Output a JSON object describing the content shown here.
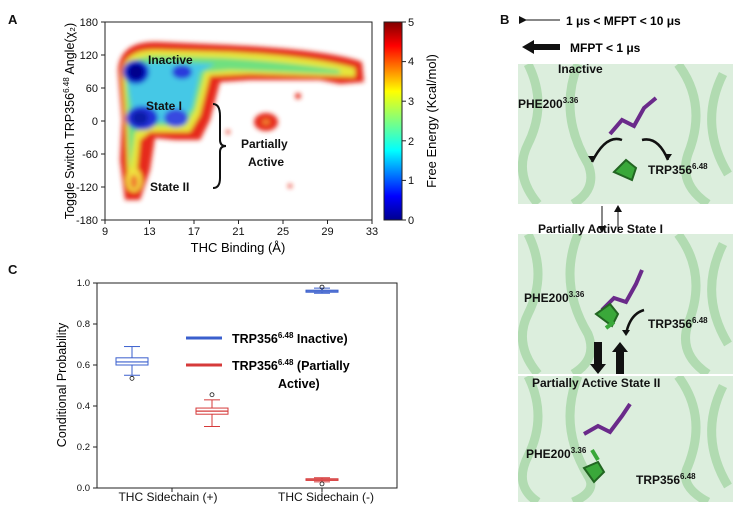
{
  "panel_a": {
    "letter": "A",
    "x_label": "THC Binding (Å)",
    "y_label_pre": "Toggle Switch TRP356",
    "y_label_sup": "6.48",
    "y_label_post": " Angle(χ₂)",
    "x_ticks": [
      "9",
      "13",
      "17",
      "21",
      "25",
      "29",
      "33"
    ],
    "y_ticks": [
      "180",
      "120",
      "60",
      "0",
      "-60",
      "-120",
      "-180"
    ],
    "colorbar_label": "Free Energy (Kcal/mol)",
    "colorbar_ticks": [
      "5",
      "4",
      "3",
      "2",
      "1",
      "0"
    ],
    "annotations": {
      "inactive": "Inactive",
      "state1": "State I",
      "partially_active_1": "Partially",
      "partially_active_2": "Active",
      "state2": "State II"
    }
  },
  "panel_b": {
    "letter": "B",
    "legend_thin": "1 μs < MFPT < 10 μs",
    "legend_thick": "MFPT < 1 μs",
    "states": {
      "inactive": "Inactive",
      "partial1": "Partially Active State I",
      "partial2": "Partially Active State II"
    },
    "phe_base": "PHE200",
    "phe_sup": "3.36",
    "trp_base": "TRP356",
    "trp_sup": "6.48"
  },
  "panel_c": {
    "letter": "C",
    "y_label": "Conditional Probability",
    "y_ticks": [
      "1.0",
      "0.8",
      "0.6",
      "0.4",
      "0.2",
      "0.0"
    ],
    "x_labels": [
      "THC Sidechain (+)",
      "THC Sidechain (-)"
    ],
    "legend": [
      {
        "base": "TRP356",
        "sup": "6.48",
        "rest": " Inactive)",
        "color": "#3a5fcd"
      },
      {
        "base": "TRP356",
        "sup": "6.48",
        "rest": " (Partially",
        "rest2": "Active)",
        "color": "#d63a3a"
      }
    ]
  },
  "chart_data": [
    {
      "type": "heatmap",
      "xlabel": "THC Binding (Å)",
      "ylabel": "Toggle Switch TRP356 6.48 Angle(χ2)",
      "xlim": [
        9,
        33
      ],
      "ylim": [
        -180,
        180
      ],
      "colorbar": {
        "label": "Free Energy (Kcal/mol)",
        "range": [
          0,
          5
        ],
        "colormap": "jet"
      },
      "minima": [
        {
          "label": "Inactive",
          "x": 11.5,
          "y": 90,
          "free_energy": 0.2
        },
        {
          "label": "State I",
          "x": 12.5,
          "y": 5,
          "free_energy": 0.5
        },
        {
          "label": "Partially Active",
          "x": 16,
          "y": 5,
          "free_energy": 1.5
        },
        {
          "label": "State II",
          "x": 12,
          "y": -115,
          "free_energy": 2.2
        }
      ]
    },
    {
      "type": "box",
      "ylabel": "Conditional Probability",
      "ylim": [
        0,
        1.0
      ],
      "categories": [
        "THC Sidechain (+)",
        "THC Sidechain (-)"
      ],
      "series": [
        {
          "name": "TRP356 6.48 Inactive)",
          "color": "#3a5fcd",
          "boxes": [
            {
              "category": "THC Sidechain (+)",
              "q1": 0.6,
              "median": 0.615,
              "q3": 0.635,
              "whisker_low": 0.55,
              "whisker_high": 0.69,
              "outliers": [
                0.535
              ]
            },
            {
              "category": "THC Sidechain (-)",
              "q1": 0.955,
              "median": 0.96,
              "q3": 0.965,
              "whisker_low": 0.95,
              "whisker_high": 0.975,
              "outliers": [
                0.98
              ]
            }
          ]
        },
        {
          "name": "TRP356 6.48 (Partially Active)",
          "color": "#d63a3a",
          "boxes": [
            {
              "category": "THC Sidechain (+)",
              "q1": 0.36,
              "median": 0.375,
              "q3": 0.39,
              "whisker_low": 0.3,
              "whisker_high": 0.43,
              "outliers": [
                0.455
              ]
            },
            {
              "category": "THC Sidechain (-)",
              "q1": 0.037,
              "median": 0.04,
              "q3": 0.045,
              "whisker_low": 0.03,
              "whisker_high": 0.05,
              "outliers": [
                0.02
              ]
            }
          ]
        }
      ]
    }
  ]
}
